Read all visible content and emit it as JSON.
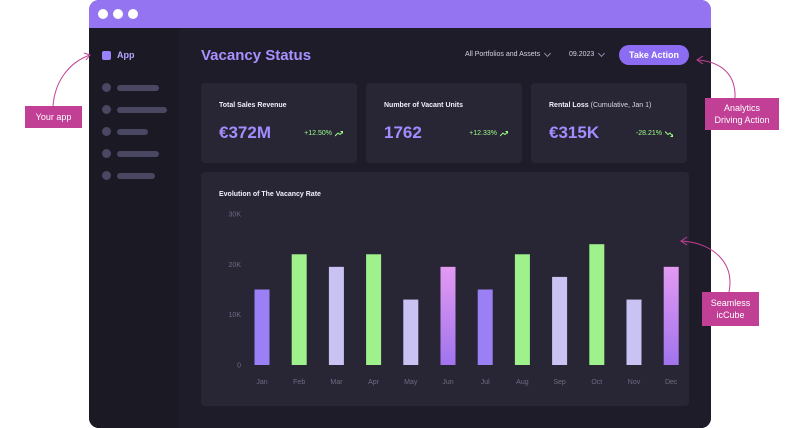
{
  "app": {
    "label": "App"
  },
  "header": {
    "title": "Vacancy Status",
    "portfolio_filter": "All Portfolios and Assets",
    "date_filter": "09.2023",
    "action_button": "Take Action"
  },
  "kpis": [
    {
      "title": "Total Sales Revenue",
      "subtitle": "",
      "value": "€372M",
      "change": "+12.50%",
      "direction": "up"
    },
    {
      "title": "Number of Vacant Units",
      "subtitle": "",
      "value": "1762",
      "change": "+12.33%",
      "direction": "up"
    },
    {
      "title": "Rental Loss",
      "subtitle": "(Cumulative, Jan 1)",
      "value": "€315K",
      "change": "-28.21%",
      "direction": "down"
    }
  ],
  "annotations": {
    "your_app": "Your app",
    "analytics": [
      "Analytics",
      "Driving Action"
    ],
    "seamless": [
      "Seamless",
      "icCube"
    ]
  },
  "colors": {
    "accent": "#9474f0",
    "purple": "#9a7ff5",
    "lavender": "#c9c3f4",
    "green": "#9ff18b",
    "pink_top": "#e39af2",
    "pink_bottom": "#a074ed",
    "annotation": "#c13f94"
  },
  "chart_data": {
    "type": "bar",
    "title": "Evolution of The Vacancy Rate",
    "categories": [
      "Jan",
      "Feb",
      "Mar",
      "Apr",
      "May",
      "Jun",
      "Jul",
      "Aug",
      "Sep",
      "Oct",
      "Nov",
      "Dec"
    ],
    "values": [
      15000,
      22000,
      19500,
      22000,
      13000,
      19500,
      15000,
      22000,
      17500,
      24000,
      13000,
      19500
    ],
    "bar_colors": [
      "purple",
      "green",
      "lavender",
      "green",
      "lavender",
      "pink",
      "purple",
      "green",
      "lavender",
      "green",
      "lavender",
      "pink"
    ],
    "ylim": [
      0,
      30000
    ],
    "yticks": [
      "0",
      "10K",
      "20K",
      "30K"
    ],
    "ytick_values": [
      0,
      10000,
      20000,
      30000
    ],
    "xlabel": "",
    "ylabel": "",
    "grid": false
  }
}
